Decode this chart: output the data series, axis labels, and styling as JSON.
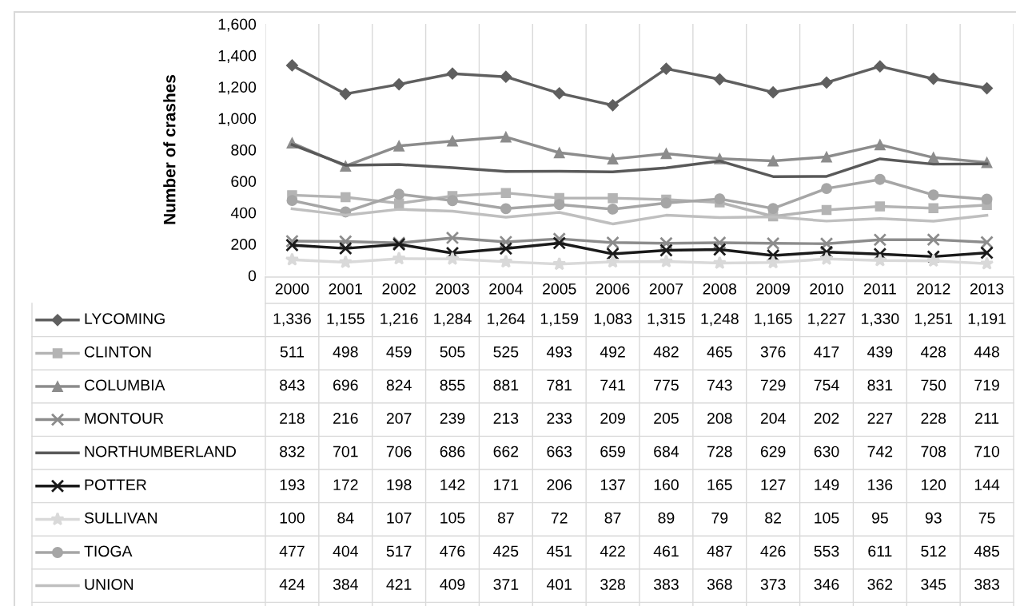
{
  "chart_data": {
    "type": "line",
    "ylabel": "Number of crashes",
    "categories": [
      "2000",
      "2001",
      "2002",
      "2003",
      "2004",
      "2005",
      "2006",
      "2007",
      "2008",
      "2009",
      "2010",
      "2011",
      "2012",
      "2013"
    ],
    "ylim": [
      0,
      1600
    ],
    "yticks": [
      {
        "value": 0,
        "label": "0"
      },
      {
        "value": 200,
        "label": "200"
      },
      {
        "value": 400,
        "label": "400"
      },
      {
        "value": 600,
        "label": "600"
      },
      {
        "value": 800,
        "label": "800"
      },
      {
        "value": 1000,
        "label": "1,000"
      },
      {
        "value": 1200,
        "label": "1,200"
      },
      {
        "value": 1400,
        "label": "1,400"
      },
      {
        "value": 1600,
        "label": "1,600"
      }
    ],
    "grid": "x",
    "legend": "bottom",
    "series": [
      {
        "name": "LYCOMING",
        "color": "#5f5f5f",
        "marker": "diamond",
        "values": [
          1336,
          1155,
          1216,
          1284,
          1264,
          1159,
          1083,
          1315,
          1248,
          1165,
          1227,
          1330,
          1251,
          1191
        ],
        "value_labels": [
          "1,336",
          "1,155",
          "1,216",
          "1,284",
          "1,264",
          "1,159",
          "1,083",
          "1,315",
          "1,248",
          "1,165",
          "1,227",
          "1,330",
          "1,251",
          "1,191"
        ]
      },
      {
        "name": "CLINTON",
        "color": "#b4b4b4",
        "marker": "square",
        "values": [
          511,
          498,
          459,
          505,
          525,
          493,
          492,
          482,
          465,
          376,
          417,
          439,
          428,
          448
        ],
        "value_labels": [
          "511",
          "498",
          "459",
          "505",
          "525",
          "493",
          "492",
          "482",
          "465",
          "376",
          "417",
          "439",
          "428",
          "448"
        ]
      },
      {
        "name": "COLUMBIA",
        "color": "#8c8c8c",
        "marker": "triangle",
        "values": [
          843,
          696,
          824,
          855,
          881,
          781,
          741,
          775,
          743,
          729,
          754,
          831,
          750,
          719
        ],
        "value_labels": [
          "843",
          "696",
          "824",
          "855",
          "881",
          "781",
          "741",
          "775",
          "743",
          "729",
          "754",
          "831",
          "750",
          "719"
        ]
      },
      {
        "name": "MONTOUR",
        "color": "#8c8c8c",
        "marker": "cross",
        "values": [
          218,
          216,
          207,
          239,
          213,
          233,
          209,
          205,
          208,
          204,
          202,
          227,
          228,
          211
        ],
        "value_labels": [
          "218",
          "216",
          "207",
          "239",
          "213",
          "233",
          "209",
          "205",
          "208",
          "204",
          "202",
          "227",
          "228",
          "211"
        ]
      },
      {
        "name": "NORTHUMBERLAND",
        "color": "#595959",
        "values": [
          832,
          701,
          706,
          686,
          662,
          663,
          659,
          684,
          728,
          629,
          630,
          742,
          708,
          710
        ],
        "value_labels": [
          "832",
          "701",
          "706",
          "686",
          "662",
          "663",
          "659",
          "684",
          "728",
          "629",
          "630",
          "742",
          "708",
          "710"
        ]
      },
      {
        "name": "POTTER",
        "color": "#1a1a1a",
        "marker": "cross",
        "values": [
          193,
          172,
          198,
          142,
          171,
          206,
          137,
          160,
          165,
          127,
          149,
          136,
          120,
          144
        ],
        "value_labels": [
          "193",
          "172",
          "198",
          "142",
          "171",
          "206",
          "137",
          "160",
          "165",
          "127",
          "149",
          "136",
          "120",
          "144"
        ]
      },
      {
        "name": "SULLIVAN",
        "color": "#d9d9d9",
        "marker": "star",
        "values": [
          100,
          84,
          107,
          105,
          87,
          72,
          87,
          89,
          79,
          82,
          105,
          95,
          93,
          75
        ],
        "value_labels": [
          "100",
          "84",
          "107",
          "105",
          "87",
          "72",
          "87",
          "89",
          "79",
          "82",
          "105",
          "95",
          "93",
          "75"
        ]
      },
      {
        "name": "TIOGA",
        "color": "#a6a6a6",
        "marker": "circle",
        "values": [
          477,
          404,
          517,
          476,
          425,
          451,
          422,
          461,
          487,
          426,
          553,
          611,
          512,
          485
        ],
        "value_labels": [
          "477",
          "404",
          "517",
          "476",
          "425",
          "451",
          "422",
          "461",
          "487",
          "426",
          "553",
          "611",
          "512",
          "485"
        ]
      },
      {
        "name": "UNION",
        "color": "#bfbfbf",
        "values": [
          424,
          384,
          421,
          409,
          371,
          401,
          328,
          383,
          368,
          373,
          346,
          362,
          345,
          383
        ],
        "value_labels": [
          "424",
          "384",
          "421",
          "409",
          "371",
          "401",
          "328",
          "383",
          "368",
          "373",
          "346",
          "362",
          "345",
          "383"
        ]
      }
    ]
  }
}
